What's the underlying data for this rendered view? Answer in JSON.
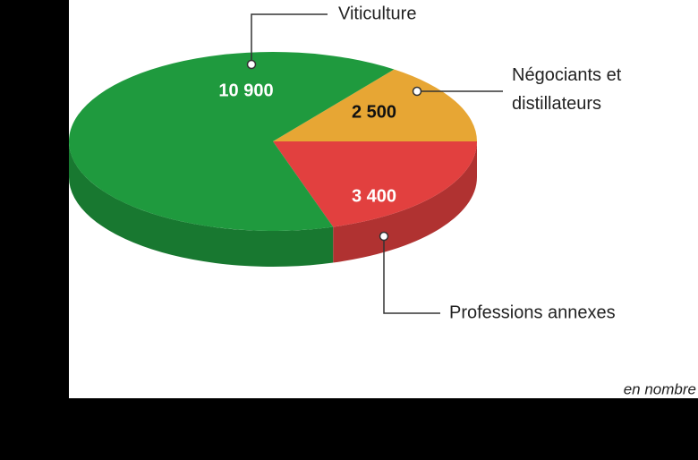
{
  "chart_data": {
    "type": "pie",
    "categories": [
      "Viticulture",
      "Négociants et distillateurs",
      "Professions annexes"
    ],
    "values": [
      10900,
      2500,
      3400
    ],
    "value_labels": [
      "10 900",
      "2 500",
      "3 400"
    ],
    "colors": [
      "#1f9a3e",
      "#e7a634",
      "#e2403f"
    ],
    "note": "en nombre"
  }
}
